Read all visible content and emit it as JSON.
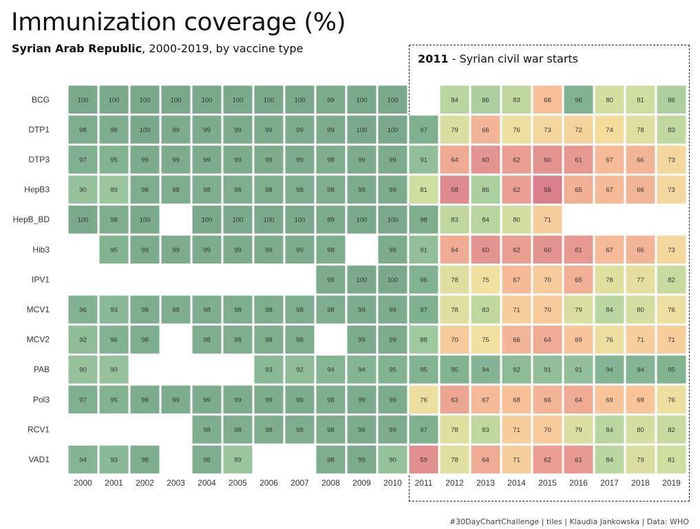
{
  "title": "Immunization coverage (%)",
  "subtitle": {
    "country": "Syrian Arab Republic",
    "rest": ", 2000-2019, by vaccine type"
  },
  "annotation": {
    "year": "2011",
    "text": " - Syrian civil war starts"
  },
  "caption": "#30DayChartChallenge  |  tiles  |  Klaudia Jankowska  |  Data: WHO",
  "chart_data": {
    "type": "heatmap",
    "x": [
      "2000",
      "2001",
      "2002",
      "2003",
      "2004",
      "2005",
      "2006",
      "2007",
      "2008",
      "2009",
      "2010",
      "2011",
      "2012",
      "2013",
      "2014",
      "2015",
      "2016",
      "2017",
      "2018",
      "2019"
    ],
    "y": [
      "BCG",
      "DTP1",
      "DTP3",
      "HepB3",
      "HepB_BD",
      "Hib3",
      "IPV1",
      "MCV1",
      "MCV2",
      "PAB",
      "Pol3",
      "RCV1",
      "VAD1"
    ],
    "values": [
      [
        100,
        100,
        100,
        100,
        100,
        100,
        100,
        100,
        99,
        100,
        100,
        null,
        84,
        86,
        83,
        68,
        96,
        80,
        81,
        86
      ],
      [
        98,
        98,
        100,
        99,
        99,
        99,
        99,
        99,
        99,
        100,
        100,
        97,
        79,
        66,
        76,
        73,
        72,
        74,
        78,
        83
      ],
      [
        97,
        95,
        99,
        99,
        99,
        99,
        99,
        99,
        98,
        99,
        99,
        91,
        64,
        60,
        62,
        60,
        61,
        67,
        66,
        73
      ],
      [
        90,
        89,
        98,
        98,
        98,
        98,
        98,
        98,
        98,
        99,
        99,
        81,
        58,
        86,
        62,
        56,
        65,
        67,
        66,
        73
      ],
      [
        100,
        98,
        100,
        null,
        100,
        100,
        100,
        100,
        99,
        100,
        100,
        98,
        83,
        84,
        80,
        71,
        null,
        null,
        null,
        null
      ],
      [
        null,
        95,
        99,
        99,
        99,
        99,
        99,
        99,
        98,
        null,
        99,
        91,
        64,
        60,
        62,
        60,
        61,
        67,
        66,
        73
      ],
      [
        null,
        null,
        null,
        null,
        null,
        null,
        null,
        null,
        99,
        100,
        100,
        96,
        78,
        75,
        67,
        70,
        65,
        78,
        77,
        82
      ],
      [
        96,
        93,
        98,
        98,
        98,
        98,
        98,
        98,
        98,
        99,
        99,
        97,
        78,
        83,
        71,
        70,
        79,
        84,
        80,
        76
      ],
      [
        92,
        96,
        98,
        null,
        98,
        98,
        98,
        98,
        null,
        99,
        99,
        88,
        70,
        75,
        66,
        64,
        69,
        76,
        71,
        71
      ],
      [
        90,
        90,
        null,
        null,
        null,
        null,
        93,
        92,
        94,
        94,
        95,
        95,
        95,
        94,
        92,
        91,
        91,
        94,
        94,
        95
      ],
      [
        97,
        95,
        99,
        99,
        99,
        99,
        99,
        99,
        98,
        99,
        99,
        76,
        63,
        67,
        68,
        66,
        64,
        69,
        69,
        76
      ],
      [
        null,
        null,
        null,
        null,
        98,
        98,
        98,
        98,
        98,
        99,
        99,
        97,
        78,
        83,
        71,
        70,
        79,
        84,
        80,
        82
      ],
      [
        94,
        93,
        98,
        null,
        98,
        89,
        null,
        null,
        98,
        99,
        90,
        59,
        78,
        64,
        71,
        62,
        61,
        84,
        79,
        81
      ]
    ],
    "color_scale": {
      "min": 56,
      "max": 100,
      "stops": [
        "#d97f8c",
        "#eba092",
        "#f8c39a",
        "#f3e0a0",
        "#cddda0",
        "#a2cba0",
        "#85b694",
        "#7aaa8b"
      ]
    },
    "grid": false,
    "legend": "none"
  }
}
